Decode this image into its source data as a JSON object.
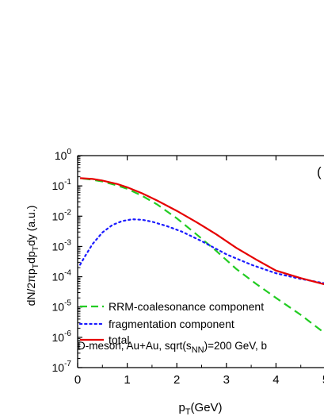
{
  "chart_data": {
    "type": "line",
    "title": "",
    "xlabel": {
      "base": "p",
      "sub": "T",
      "rest": "(GeV)"
    },
    "ylabel": {
      "parts": [
        {
          "t": "dN/2πp",
          "sub": false
        },
        {
          "t": "T",
          "sub": true
        },
        {
          "t": "dp",
          "sub": false
        },
        {
          "t": "T",
          "sub": true
        },
        {
          "t": "dy (a.u.)",
          "sub": false
        }
      ]
    },
    "xlim": [
      0,
      5
    ],
    "ylim": [
      1e-07,
      1
    ],
    "yscale": "log",
    "grid": false,
    "x_ticks": [
      "0",
      "1",
      "2",
      "3",
      "4",
      "5"
    ],
    "y_ticks": [
      {
        "base": "10",
        "exp": "0",
        "value": 1
      },
      {
        "base": "10",
        "exp": "-1",
        "value": 0.1
      },
      {
        "base": "10",
        "exp": "-2",
        "value": 0.01
      },
      {
        "base": "10",
        "exp": "-3",
        "value": 0.001
      },
      {
        "base": "10",
        "exp": "-4",
        "value": 0.0001
      },
      {
        "base": "10",
        "exp": "-5",
        "value": 1e-05
      },
      {
        "base": "10",
        "exp": "-6",
        "value": 1e-06
      },
      {
        "base": "10",
        "exp": "-7",
        "value": 1e-07
      }
    ],
    "panel_label": "(",
    "annotation": {
      "pre": "D-meson, Au+Au, sqrt(s",
      "sub": "NN",
      "post": ")=200 GeV, b"
    },
    "legend_position": "lower-left",
    "series": [
      {
        "name": "RRM-coalesonance component",
        "color": "#22cc22",
        "dash": "dashed",
        "x": [
          0.1,
          0.3,
          0.5,
          0.8,
          1.0,
          1.3,
          1.6,
          2.0,
          2.4,
          2.8,
          3.2,
          3.6,
          4.0,
          4.5,
          5.0
        ],
        "y": [
          0.175,
          0.16,
          0.14,
          0.103,
          0.08,
          0.047,
          0.0245,
          0.0085,
          0.0025,
          0.0007,
          0.00018,
          5.8e-05,
          2e-05,
          5.5e-06,
          1.3e-06
        ]
      },
      {
        "name": "fragmentation component",
        "color": "#1a1aff",
        "dash": "dotted",
        "x": [
          0.05,
          0.15,
          0.3,
          0.5,
          0.7,
          0.9,
          1.1,
          1.3,
          1.5,
          1.8,
          2.1,
          2.5,
          3.0,
          3.5,
          4.0,
          4.5,
          5.0
        ],
        "y": [
          0.00025,
          0.00048,
          0.0012,
          0.0029,
          0.0051,
          0.0069,
          0.0079,
          0.0076,
          0.0066,
          0.0047,
          0.0031,
          0.0015,
          0.00055,
          0.00025,
          0.00013,
          8.5e-05,
          6e-05
        ]
      },
      {
        "name": "total",
        "color": "#e60000",
        "dash": "solid",
        "x": [
          0.05,
          0.3,
          0.5,
          0.8,
          1.0,
          1.3,
          1.6,
          2.0,
          2.4,
          2.8,
          3.2,
          3.6,
          4.0,
          4.5,
          5.0
        ],
        "y": [
          0.18,
          0.17,
          0.15,
          0.115,
          0.09,
          0.057,
          0.033,
          0.015,
          0.0063,
          0.0025,
          0.0009,
          0.00037,
          0.00016,
          9e-05,
          5.5e-05
        ]
      }
    ]
  }
}
